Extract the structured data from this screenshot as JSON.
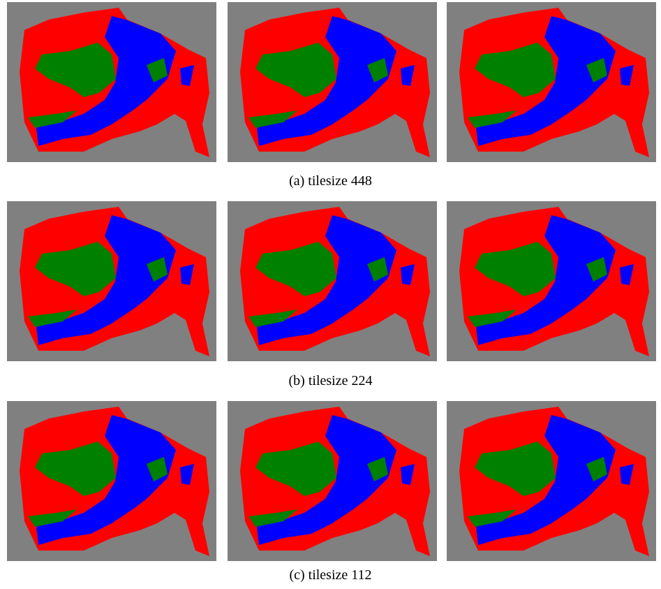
{
  "captions": [
    "(a) tilesize 448",
    "(b) tilesize 224",
    "(c) tilesize 112"
  ]
}
